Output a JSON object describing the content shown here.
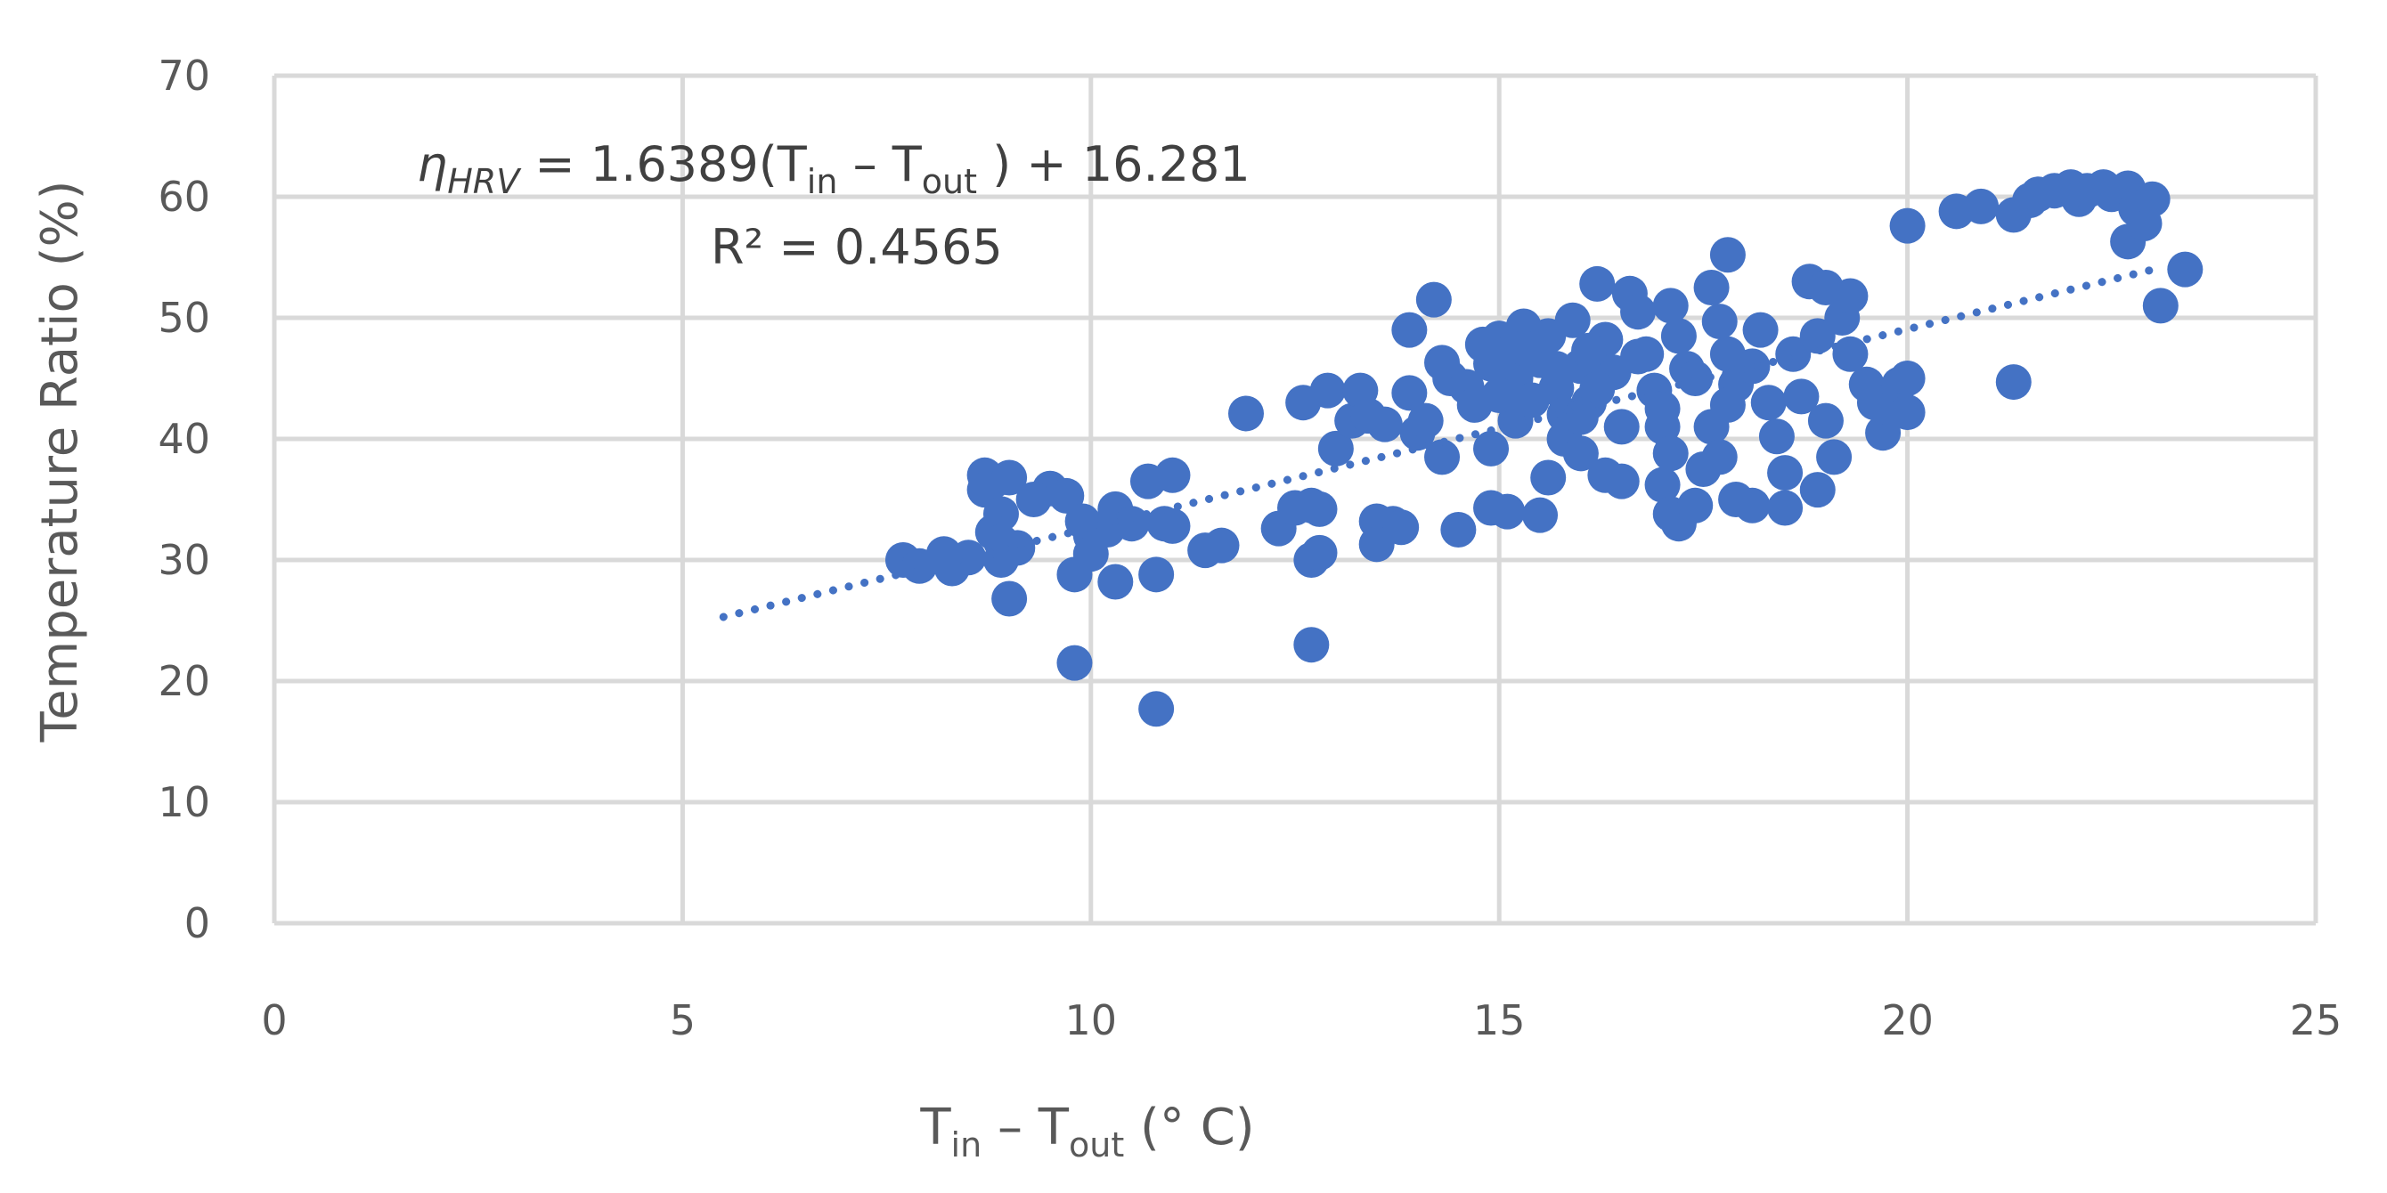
{
  "chart_data": {
    "type": "scatter",
    "xlabel": {
      "main1": "T",
      "sub1": "in",
      "mid": " – T",
      "sub2": "out",
      "tail": " (° C)"
    },
    "ylabel": "Temperature Ratio (%)",
    "xlim": [
      0,
      25
    ],
    "ylim": [
      0,
      70
    ],
    "x_ticks": [
      "0",
      "5",
      "10",
      "15",
      "20",
      "25"
    ],
    "y_ticks": [
      "0",
      "10",
      "20",
      "30",
      "40",
      "50",
      "60",
      "70"
    ],
    "grid": true,
    "marker_color": "#4472C4",
    "trendline": {
      "type": "linear",
      "style": "dotted",
      "slope": 1.6389,
      "intercept": 16.281,
      "x_range": [
        5.5,
        23.1
      ],
      "equation": {
        "eta": "η",
        "eta_sub": "HRV",
        "part1": " = 1.6389(T",
        "sub_in": "in",
        "part2": " – T",
        "sub_out": "out",
        "part3": " ) + 16.281"
      },
      "r_squared": "R² = 0.4565"
    },
    "points": [
      [
        7.7,
        30.0
      ],
      [
        7.9,
        29.5
      ],
      [
        8.2,
        30.5
      ],
      [
        8.3,
        29.3
      ],
      [
        8.5,
        30.2
      ],
      [
        8.7,
        37.0
      ],
      [
        8.8,
        36.5
      ],
      [
        8.7,
        35.8
      ],
      [
        8.9,
        33.8
      ],
      [
        8.8,
        32.3
      ],
      [
        9.0,
        36.8
      ],
      [
        9.1,
        31.0
      ],
      [
        8.9,
        30.0
      ],
      [
        9.0,
        26.8
      ],
      [
        8.9,
        31.5
      ],
      [
        9.5,
        35.9
      ],
      [
        9.7,
        35.3
      ],
      [
        9.3,
        35.0
      ],
      [
        9.9,
        33.2
      ],
      [
        10.0,
        32.0
      ],
      [
        9.8,
        28.8
      ],
      [
        10.0,
        30.5
      ],
      [
        10.3,
        34.2
      ],
      [
        10.5,
        33.0
      ],
      [
        10.2,
        32.5
      ],
      [
        10.3,
        28.2
      ],
      [
        9.8,
        21.5
      ],
      [
        10.8,
        17.7
      ],
      [
        10.7,
        36.5
      ],
      [
        11.0,
        37.0
      ],
      [
        10.9,
        33.0
      ],
      [
        10.8,
        28.8
      ],
      [
        11.0,
        32.8
      ],
      [
        11.4,
        30.8
      ],
      [
        11.6,
        31.2
      ],
      [
        11.9,
        42.1
      ],
      [
        12.3,
        32.6
      ],
      [
        12.5,
        34.3
      ],
      [
        12.6,
        43.0
      ],
      [
        12.7,
        34.5
      ],
      [
        12.8,
        34.2
      ],
      [
        12.7,
        30.0
      ],
      [
        12.8,
        30.6
      ],
      [
        12.7,
        23.0
      ],
      [
        12.9,
        44.0
      ],
      [
        13.0,
        39.2
      ],
      [
        13.2,
        41.5
      ],
      [
        13.3,
        44.0
      ],
      [
        13.6,
        41.2
      ],
      [
        13.4,
        41.9
      ],
      [
        13.5,
        33.2
      ],
      [
        13.7,
        33.0
      ],
      [
        13.5,
        31.3
      ],
      [
        13.8,
        32.7
      ],
      [
        13.9,
        43.8
      ],
      [
        14.0,
        40.5
      ],
      [
        13.9,
        49.0
      ],
      [
        14.2,
        51.5
      ],
      [
        14.3,
        46.3
      ],
      [
        14.4,
        45.0
      ],
      [
        14.3,
        38.5
      ],
      [
        14.1,
        41.5
      ],
      [
        14.5,
        32.5
      ],
      [
        14.6,
        44.3
      ],
      [
        14.7,
        42.8
      ],
      [
        14.8,
        47.8
      ],
      [
        14.9,
        46.2
      ],
      [
        14.9,
        39.2
      ],
      [
        14.9,
        34.3
      ],
      [
        15.1,
        34.0
      ],
      [
        15.0,
        48.3
      ],
      [
        15.1,
        47.0
      ],
      [
        15.2,
        45.0
      ],
      [
        15.3,
        49.3
      ],
      [
        15.2,
        41.5
      ],
      [
        15.4,
        43.2
      ],
      [
        15.5,
        46.5
      ],
      [
        15.6,
        48.5
      ],
      [
        15.7,
        44.2
      ],
      [
        15.8,
        42.0
      ],
      [
        15.5,
        33.7
      ],
      [
        15.6,
        36.8
      ],
      [
        15.8,
        40.0
      ],
      [
        15.9,
        49.8
      ],
      [
        16.0,
        46.0
      ],
      [
        16.1,
        43.0
      ],
      [
        16.0,
        38.8
      ],
      [
        16.2,
        52.8
      ],
      [
        16.3,
        48.2
      ],
      [
        16.4,
        45.5
      ],
      [
        16.5,
        41.0
      ],
      [
        16.3,
        37.0
      ],
      [
        16.5,
        36.5
      ],
      [
        16.6,
        52.0
      ],
      [
        16.7,
        50.5
      ],
      [
        16.8,
        47.0
      ],
      [
        16.9,
        44.0
      ],
      [
        17.0,
        41.0
      ],
      [
        17.1,
        51.0
      ],
      [
        17.2,
        48.5
      ],
      [
        17.3,
        45.8
      ],
      [
        17.0,
        42.5
      ],
      [
        17.1,
        38.8
      ],
      [
        17.0,
        36.2
      ],
      [
        17.1,
        33.8
      ],
      [
        17.2,
        33.0
      ],
      [
        17.4,
        34.5
      ],
      [
        17.5,
        37.5
      ],
      [
        17.6,
        52.5
      ],
      [
        17.7,
        49.7
      ],
      [
        17.8,
        55.2
      ],
      [
        17.8,
        47.0
      ],
      [
        17.9,
        44.5
      ],
      [
        17.6,
        41.0
      ],
      [
        17.7,
        38.5
      ],
      [
        17.9,
        35.0
      ],
      [
        18.1,
        34.5
      ],
      [
        18.2,
        49.0
      ],
      [
        18.1,
        46.0
      ],
      [
        18.3,
        43.0
      ],
      [
        18.4,
        40.2
      ],
      [
        18.5,
        37.2
      ],
      [
        18.5,
        34.3
      ],
      [
        18.6,
        47.0
      ],
      [
        18.7,
        43.5
      ],
      [
        18.8,
        53.0
      ],
      [
        18.9,
        48.5
      ],
      [
        19.0,
        52.5
      ],
      [
        19.2,
        50.0
      ],
      [
        19.3,
        51.8
      ],
      [
        19.0,
        41.5
      ],
      [
        19.1,
        38.5
      ],
      [
        18.9,
        35.8
      ],
      [
        19.3,
        47.0
      ],
      [
        19.5,
        44.5
      ],
      [
        19.6,
        43.0
      ],
      [
        19.7,
        40.5
      ],
      [
        19.8,
        42.5
      ],
      [
        19.9,
        44.5
      ],
      [
        20.0,
        45.0
      ],
      [
        20.0,
        42.2
      ],
      [
        20.0,
        57.6
      ],
      [
        20.6,
        58.8
      ],
      [
        20.9,
        59.2
      ],
      [
        21.3,
        58.5
      ],
      [
        21.5,
        59.7
      ],
      [
        21.6,
        60.2
      ],
      [
        21.8,
        60.5
      ],
      [
        22.0,
        60.8
      ],
      [
        22.1,
        59.8
      ],
      [
        22.2,
        60.5
      ],
      [
        22.4,
        60.8
      ],
      [
        22.5,
        60.2
      ],
      [
        22.7,
        60.7
      ],
      [
        22.8,
        59.0
      ],
      [
        22.7,
        56.3
      ],
      [
        22.9,
        57.8
      ],
      [
        23.0,
        59.8
      ],
      [
        23.1,
        51.0
      ],
      [
        23.4,
        54.0
      ],
      [
        21.3,
        44.7
      ],
      [
        15.3,
        47.5
      ],
      [
        15.7,
        45.8
      ],
      [
        16.1,
        47.3
      ],
      [
        16.7,
        46.8
      ],
      [
        17.4,
        45.0
      ],
      [
        16.2,
        44.1
      ],
      [
        15.0,
        43.6
      ],
      [
        16.0,
        41.8
      ],
      [
        17.8,
        42.8
      ]
    ]
  }
}
